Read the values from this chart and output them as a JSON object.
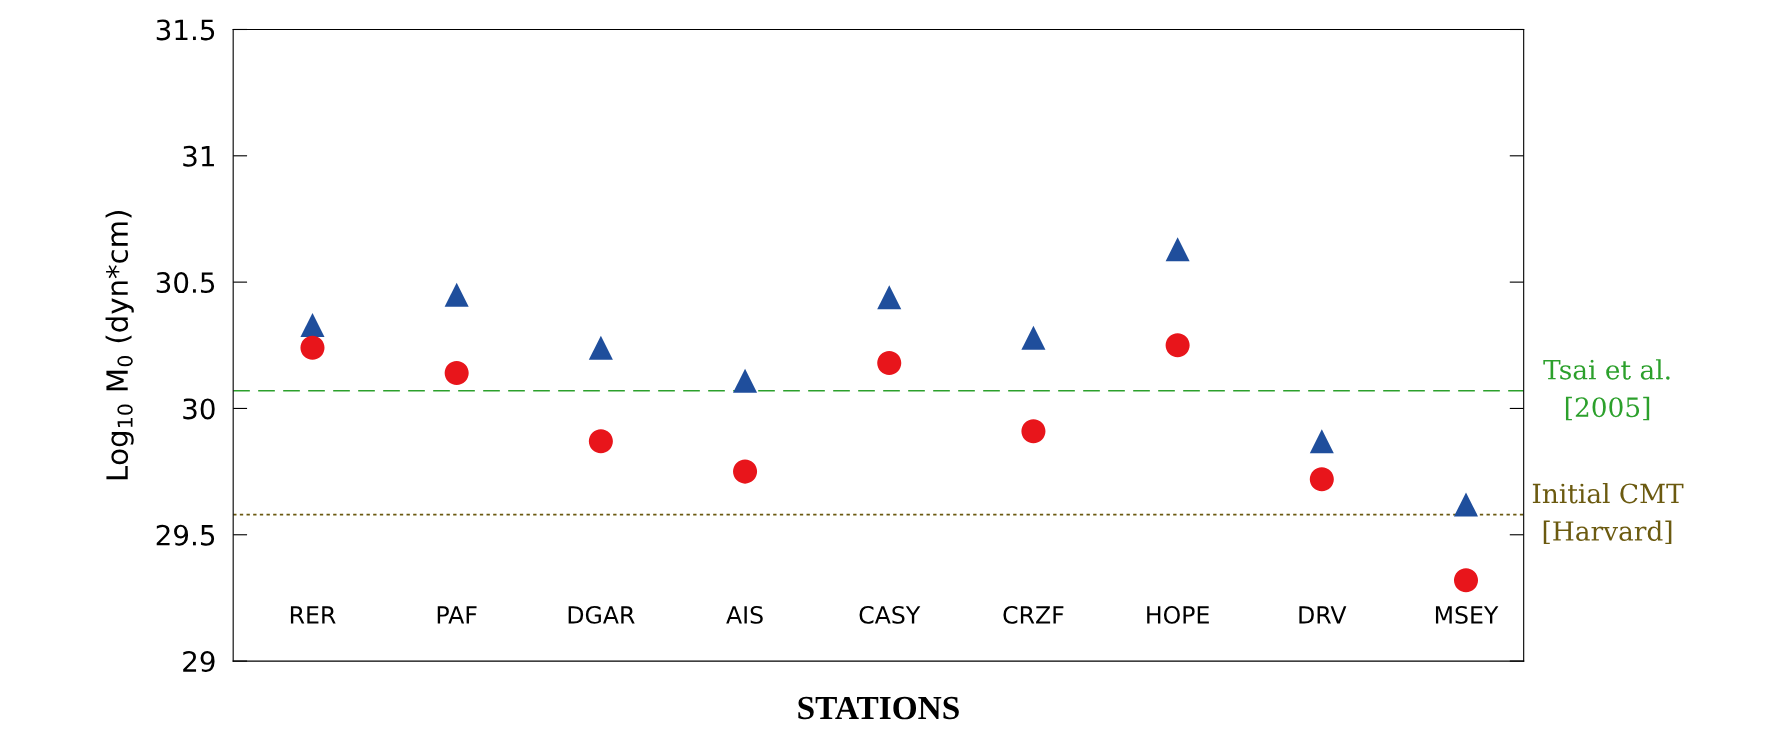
{
  "chart_data": {
    "type": "scatter",
    "xlabel": "STATIONS",
    "ylabel": "Log$_{10}$ M$_{0}$ (dyn*cm)",
    "categories": [
      "RER",
      "PAF",
      "DGAR",
      "AIS",
      "CASY",
      "CRZF",
      "HOPE",
      "DRV",
      "MSEY"
    ],
    "series": [
      {
        "color": "#1f4e9c",
        "marker": "triangle",
        "values": [
          30.33,
          30.45,
          30.24,
          30.11,
          30.44,
          30.28,
          30.63,
          29.87,
          29.62
        ]
      },
      {
        "color": "#e8151b",
        "marker": "circle",
        "values": [
          30.24,
          30.14,
          29.87,
          29.75,
          30.18,
          29.91,
          30.25,
          29.72,
          29.32
        ]
      }
    ],
    "ylim": [
      29,
      31.5
    ],
    "yticks": [
      29,
      29.5,
      30,
      30.5,
      31,
      31.5
    ],
    "ref_lines": [
      {
        "axis": "y",
        "value": 30.07,
        "label": "Tsai et al.\n[2005]",
        "color": "#2ca02c",
        "line_style": "dashed"
      },
      {
        "axis": "y",
        "value": 29.58,
        "label": "Initial CMT\n[Harvard]",
        "color": "#6b5a10",
        "line_style": "dotted"
      }
    ],
    "grid": false,
    "legend": false
  }
}
